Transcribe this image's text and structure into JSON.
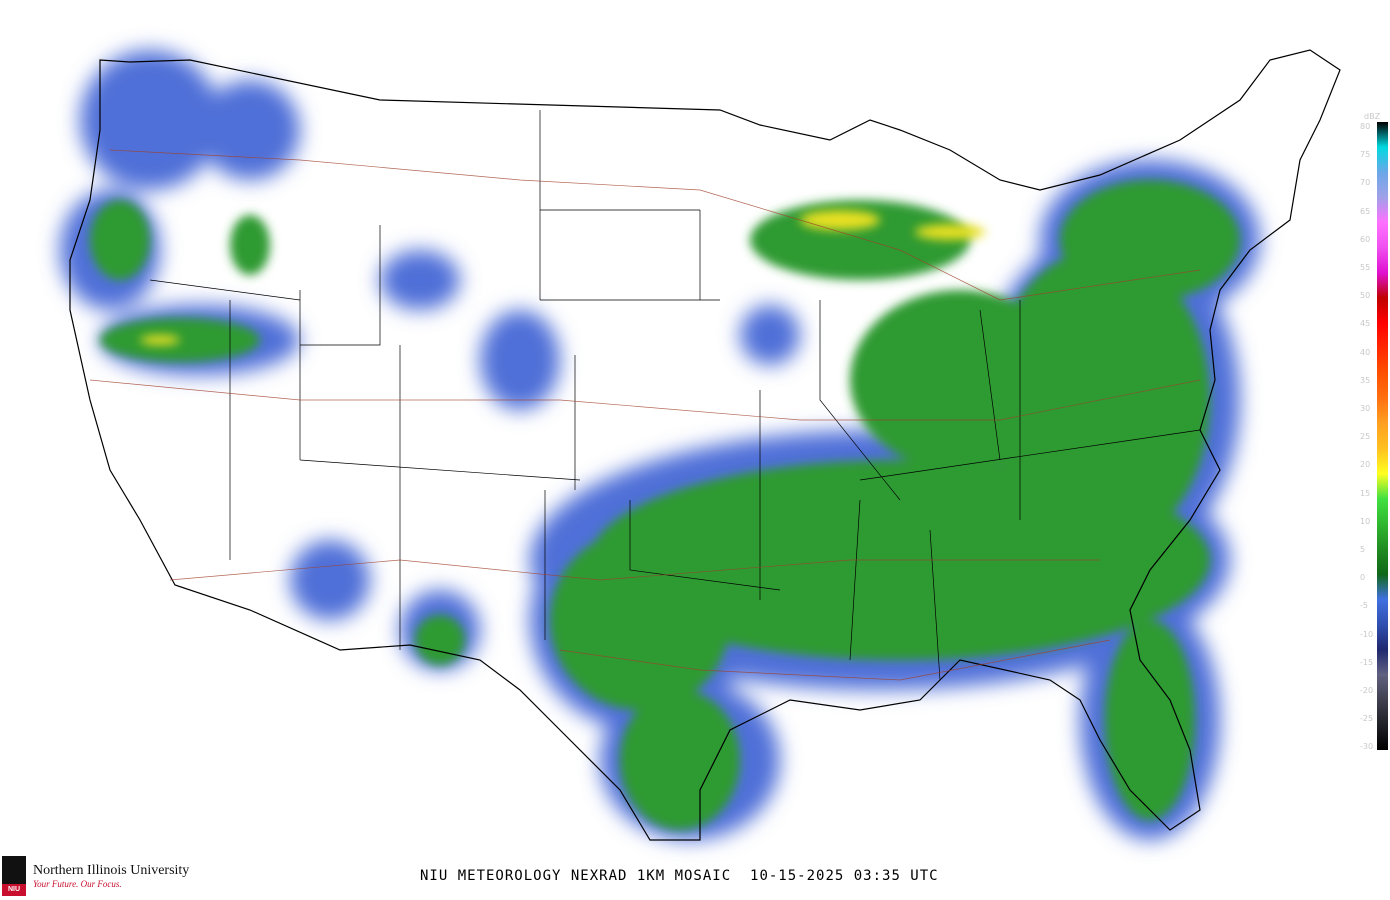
{
  "title": "NIU METEOROLOGY NEXRAD 1KM MOSAIC",
  "timestamp": "10-15-2025 03:35 UTC",
  "logo": {
    "name": "Northern Illinois University",
    "tagline": "Your Future. Our Focus.",
    "mark": "NIU"
  },
  "legend": {
    "unit": "dBZ",
    "labels": [
      "80",
      "75",
      "70",
      "65",
      "60",
      "55",
      "50",
      "45",
      "40",
      "35",
      "30",
      "25",
      "20",
      "15",
      "10",
      "5",
      "0",
      "-5",
      "-10",
      "-15",
      "-20",
      "-25",
      "-30"
    ],
    "colors": [
      "#000000",
      "#00d8e0",
      "#6aa8e8",
      "#a0a0e8",
      "#ff70ff",
      "#f050f0",
      "#e010d0",
      "#c00000",
      "#ff0000",
      "#ff2800",
      "#ff5000",
      "#ff7010",
      "#ffa020",
      "#ffc020",
      "#ffff20",
      "#40e040",
      "#30b830",
      "#208c20",
      "#106818",
      "#4070e0",
      "#3050b0",
      "#202870",
      "#606080",
      "#404050",
      "#202028",
      "#000000"
    ]
  }
}
